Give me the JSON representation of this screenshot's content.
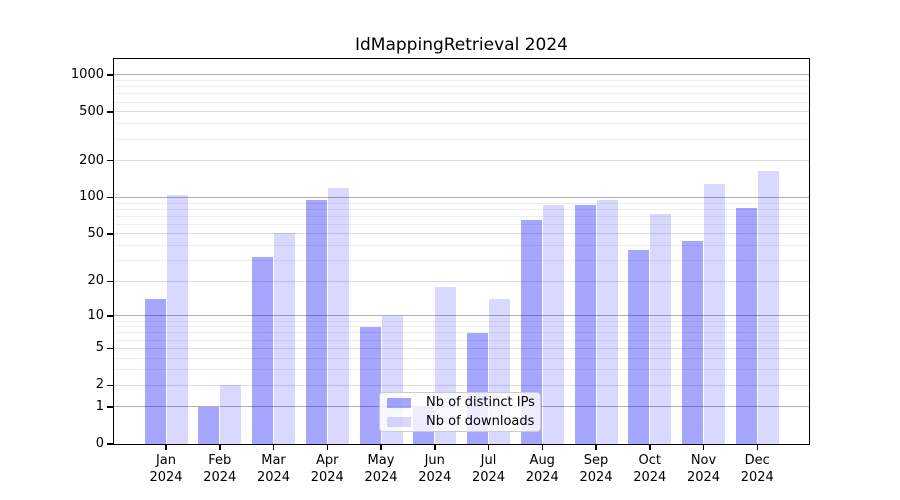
{
  "chart": {
    "title": "IdMappingRetrieval 2024",
    "legend": {
      "items": [
        {
          "label": "Nb of distinct IPs",
          "color": "rgba(0,0,255,0.35)"
        },
        {
          "label": "Nb of downloads",
          "color": "rgba(0,0,255,0.15)"
        }
      ]
    }
  },
  "chart_data": {
    "type": "bar",
    "title": "IdMappingRetrieval 2024",
    "categories": [
      "Jan 2024",
      "Feb 2024",
      "Mar 2024",
      "Apr 2024",
      "May 2024",
      "Jun 2024",
      "Jul 2024",
      "Aug 2024",
      "Sep 2024",
      "Oct 2024",
      "Nov 2024",
      "Dec 2024"
    ],
    "series": [
      {
        "name": "Nb of distinct IPs",
        "color": "rgba(0,0,255,0.35)",
        "values": [
          14,
          1,
          32,
          95,
          8,
          1,
          7,
          65,
          86,
          37,
          44,
          82
        ]
      },
      {
        "name": "Nb of downloads",
        "color": "rgba(0,0,255,0.15)",
        "values": [
          104,
          2,
          51,
          120,
          10,
          18,
          14,
          87,
          96,
          73,
          128,
          165
        ]
      }
    ],
    "xlabel": "",
    "ylabel": "",
    "yscale": "log1p",
    "yticks": [
      1000,
      500,
      200,
      100,
      50,
      20,
      10,
      5,
      2,
      1,
      0
    ],
    "ylim": [
      0,
      1340
    ],
    "grid": true,
    "legend_position": "lower center",
    "colors": {
      "grid_major": "#b0b0b0",
      "grid_minor": "#ededed",
      "axis": "#000000"
    }
  }
}
